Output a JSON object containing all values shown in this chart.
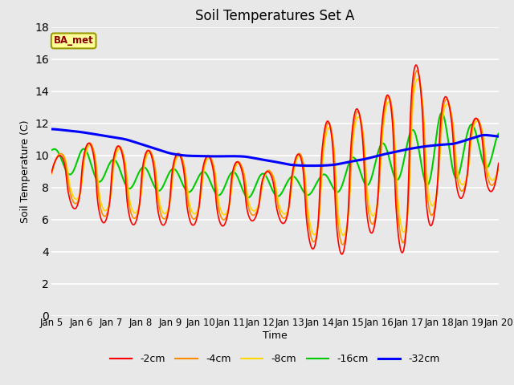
{
  "title": "Soil Temperatures Set A",
  "xlabel": "Time",
  "ylabel": "Soil Temperature (C)",
  "ylim": [
    0,
    18
  ],
  "label_text": "BA_met",
  "colors": {
    "-2cm": "#FF0000",
    "-4cm": "#FF8C00",
    "-8cm": "#FFD700",
    "-16cm": "#00CC00",
    "-32cm": "#0000FF"
  },
  "legend_labels": [
    "-2cm",
    "-4cm",
    "-8cm",
    "-16cm",
    "-32cm"
  ],
  "tick_labels": [
    "Jan 5",
    "Jan 6",
    "Jan 7",
    "Jan 8",
    "Jan 9",
    "Jan 10",
    "Jan 11",
    "Jan 12",
    "Jan 13",
    "Jan 14",
    "Jan 15",
    "Jan 16",
    "Jan 17",
    "Jan 18",
    "Jan 19",
    "Jan 20"
  ],
  "bg_color": "#E8E8E8",
  "grid_color": "white",
  "title_fontsize": 12,
  "axis_label_fontsize": 9,
  "tick_fontsize": 8.5
}
